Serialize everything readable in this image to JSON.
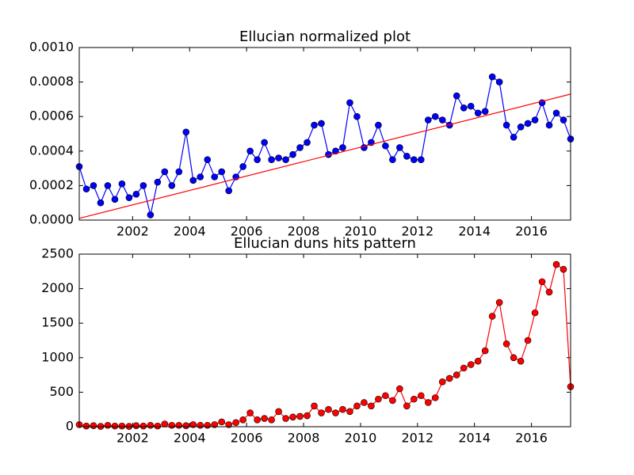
{
  "chart_data": [
    {
      "type": "line",
      "title": "Ellucian normalized plot",
      "x": [
        2000.125,
        2000.375,
        2000.625,
        2000.875,
        2001.125,
        2001.375,
        2001.625,
        2001.875,
        2002.125,
        2002.375,
        2002.625,
        2002.875,
        2003.125,
        2003.375,
        2003.625,
        2003.875,
        2004.125,
        2004.375,
        2004.625,
        2004.875,
        2005.125,
        2005.375,
        2005.625,
        2005.875,
        2006.125,
        2006.375,
        2006.625,
        2006.875,
        2007.125,
        2007.375,
        2007.625,
        2007.875,
        2008.125,
        2008.375,
        2008.625,
        2008.875,
        2009.125,
        2009.375,
        2009.625,
        2009.875,
        2010.125,
        2010.375,
        2010.625,
        2010.875,
        2011.125,
        2011.375,
        2011.625,
        2011.875,
        2012.125,
        2012.375,
        2012.625,
        2012.875,
        2013.125,
        2013.375,
        2013.625,
        2013.875,
        2014.125,
        2014.375,
        2014.625,
        2014.875,
        2015.125,
        2015.375,
        2015.625,
        2015.875,
        2016.125,
        2016.375,
        2016.625,
        2016.875,
        2017.125,
        2017.375
      ],
      "series": [
        {
          "color": "#0000ff",
          "values": [
            0.00031,
            0.00018,
            0.0002,
            0.0001,
            0.0002,
            0.00012,
            0.00021,
            0.00013,
            0.00015,
            0.0002,
            3e-05,
            0.00022,
            0.00028,
            0.0002,
            0.00028,
            0.00051,
            0.00023,
            0.00025,
            0.00035,
            0.00025,
            0.00028,
            0.00017,
            0.00025,
            0.00031,
            0.0004,
            0.00035,
            0.00045,
            0.00035,
            0.00036,
            0.00035,
            0.00038,
            0.00042,
            0.00045,
            0.00055,
            0.00056,
            0.00038,
            0.0004,
            0.00042,
            0.00068,
            0.0006,
            0.00042,
            0.00045,
            0.00055,
            0.00043,
            0.00035,
            0.00042,
            0.00037,
            0.00035,
            0.00035,
            0.00058,
            0.0006,
            0.00058,
            0.00055,
            0.00072,
            0.00065,
            0.00066,
            0.00062,
            0.00063,
            0.00083,
            0.0008,
            0.00055,
            0.00048,
            0.00054,
            0.00056,
            0.00058,
            0.00068,
            0.00055,
            0.00062,
            0.00058,
            0.00047
          ]
        }
      ],
      "trend": {
        "color": "#ff0000",
        "x": [
          2000.125,
          2017.375
        ],
        "values": [
          1e-05,
          0.00073
        ]
      },
      "xlim": [
        2000.125,
        2017.375
      ],
      "xticks": [
        2002,
        2004,
        2006,
        2008,
        2010,
        2012,
        2014,
        2016
      ],
      "ylim": [
        0,
        0.001
      ],
      "yticks": [
        {
          "value": 0,
          "label": "0.0000"
        },
        {
          "value": 0.0002,
          "label": "0.0002"
        },
        {
          "value": 0.0004,
          "label": "0.0004"
        },
        {
          "value": 0.0006,
          "label": "0.0006"
        },
        {
          "value": 0.0008,
          "label": "0.0008"
        },
        {
          "value": 0.001,
          "label": "0.0010"
        }
      ]
    },
    {
      "type": "line",
      "title": "Ellucian duns hits pattern",
      "x": [
        2000.125,
        2000.375,
        2000.625,
        2000.875,
        2001.125,
        2001.375,
        2001.625,
        2001.875,
        2002.125,
        2002.375,
        2002.625,
        2002.875,
        2003.125,
        2003.375,
        2003.625,
        2003.875,
        2004.125,
        2004.375,
        2004.625,
        2004.875,
        2005.125,
        2005.375,
        2005.625,
        2005.875,
        2006.125,
        2006.375,
        2006.625,
        2006.875,
        2007.125,
        2007.375,
        2007.625,
        2007.875,
        2008.125,
        2008.375,
        2008.625,
        2008.875,
        2009.125,
        2009.375,
        2009.625,
        2009.875,
        2010.125,
        2010.375,
        2010.625,
        2010.875,
        2011.125,
        2011.375,
        2011.625,
        2011.875,
        2012.125,
        2012.375,
        2012.625,
        2012.875,
        2013.125,
        2013.375,
        2013.625,
        2013.875,
        2014.125,
        2014.375,
        2014.625,
        2014.875,
        2015.125,
        2015.375,
        2015.625,
        2015.875,
        2016.125,
        2016.375,
        2016.625,
        2016.875,
        2017.125,
        2017.375
      ],
      "series": [
        {
          "color": "#ff0000",
          "values": [
            30,
            10,
            15,
            5,
            20,
            10,
            10,
            5,
            15,
            10,
            20,
            10,
            40,
            20,
            20,
            15,
            30,
            20,
            20,
            30,
            70,
            30,
            60,
            100,
            200,
            100,
            120,
            100,
            220,
            120,
            140,
            150,
            160,
            300,
            200,
            250,
            200,
            250,
            220,
            300,
            350,
            300,
            400,
            450,
            380,
            550,
            300,
            400,
            450,
            350,
            420,
            650,
            700,
            750,
            850,
            900,
            950,
            1100,
            1600,
            1800,
            1200,
            1000,
            950,
            1250,
            1650,
            2100,
            1950,
            2350,
            2280,
            580
          ]
        }
      ],
      "xlim": [
        2000.125,
        2017.375
      ],
      "xticks": [
        2002,
        2004,
        2006,
        2008,
        2010,
        2012,
        2014,
        2016
      ],
      "ylim": [
        0,
        2500
      ],
      "yticks": [
        0,
        500,
        1000,
        1500,
        2000,
        2500
      ]
    }
  ]
}
